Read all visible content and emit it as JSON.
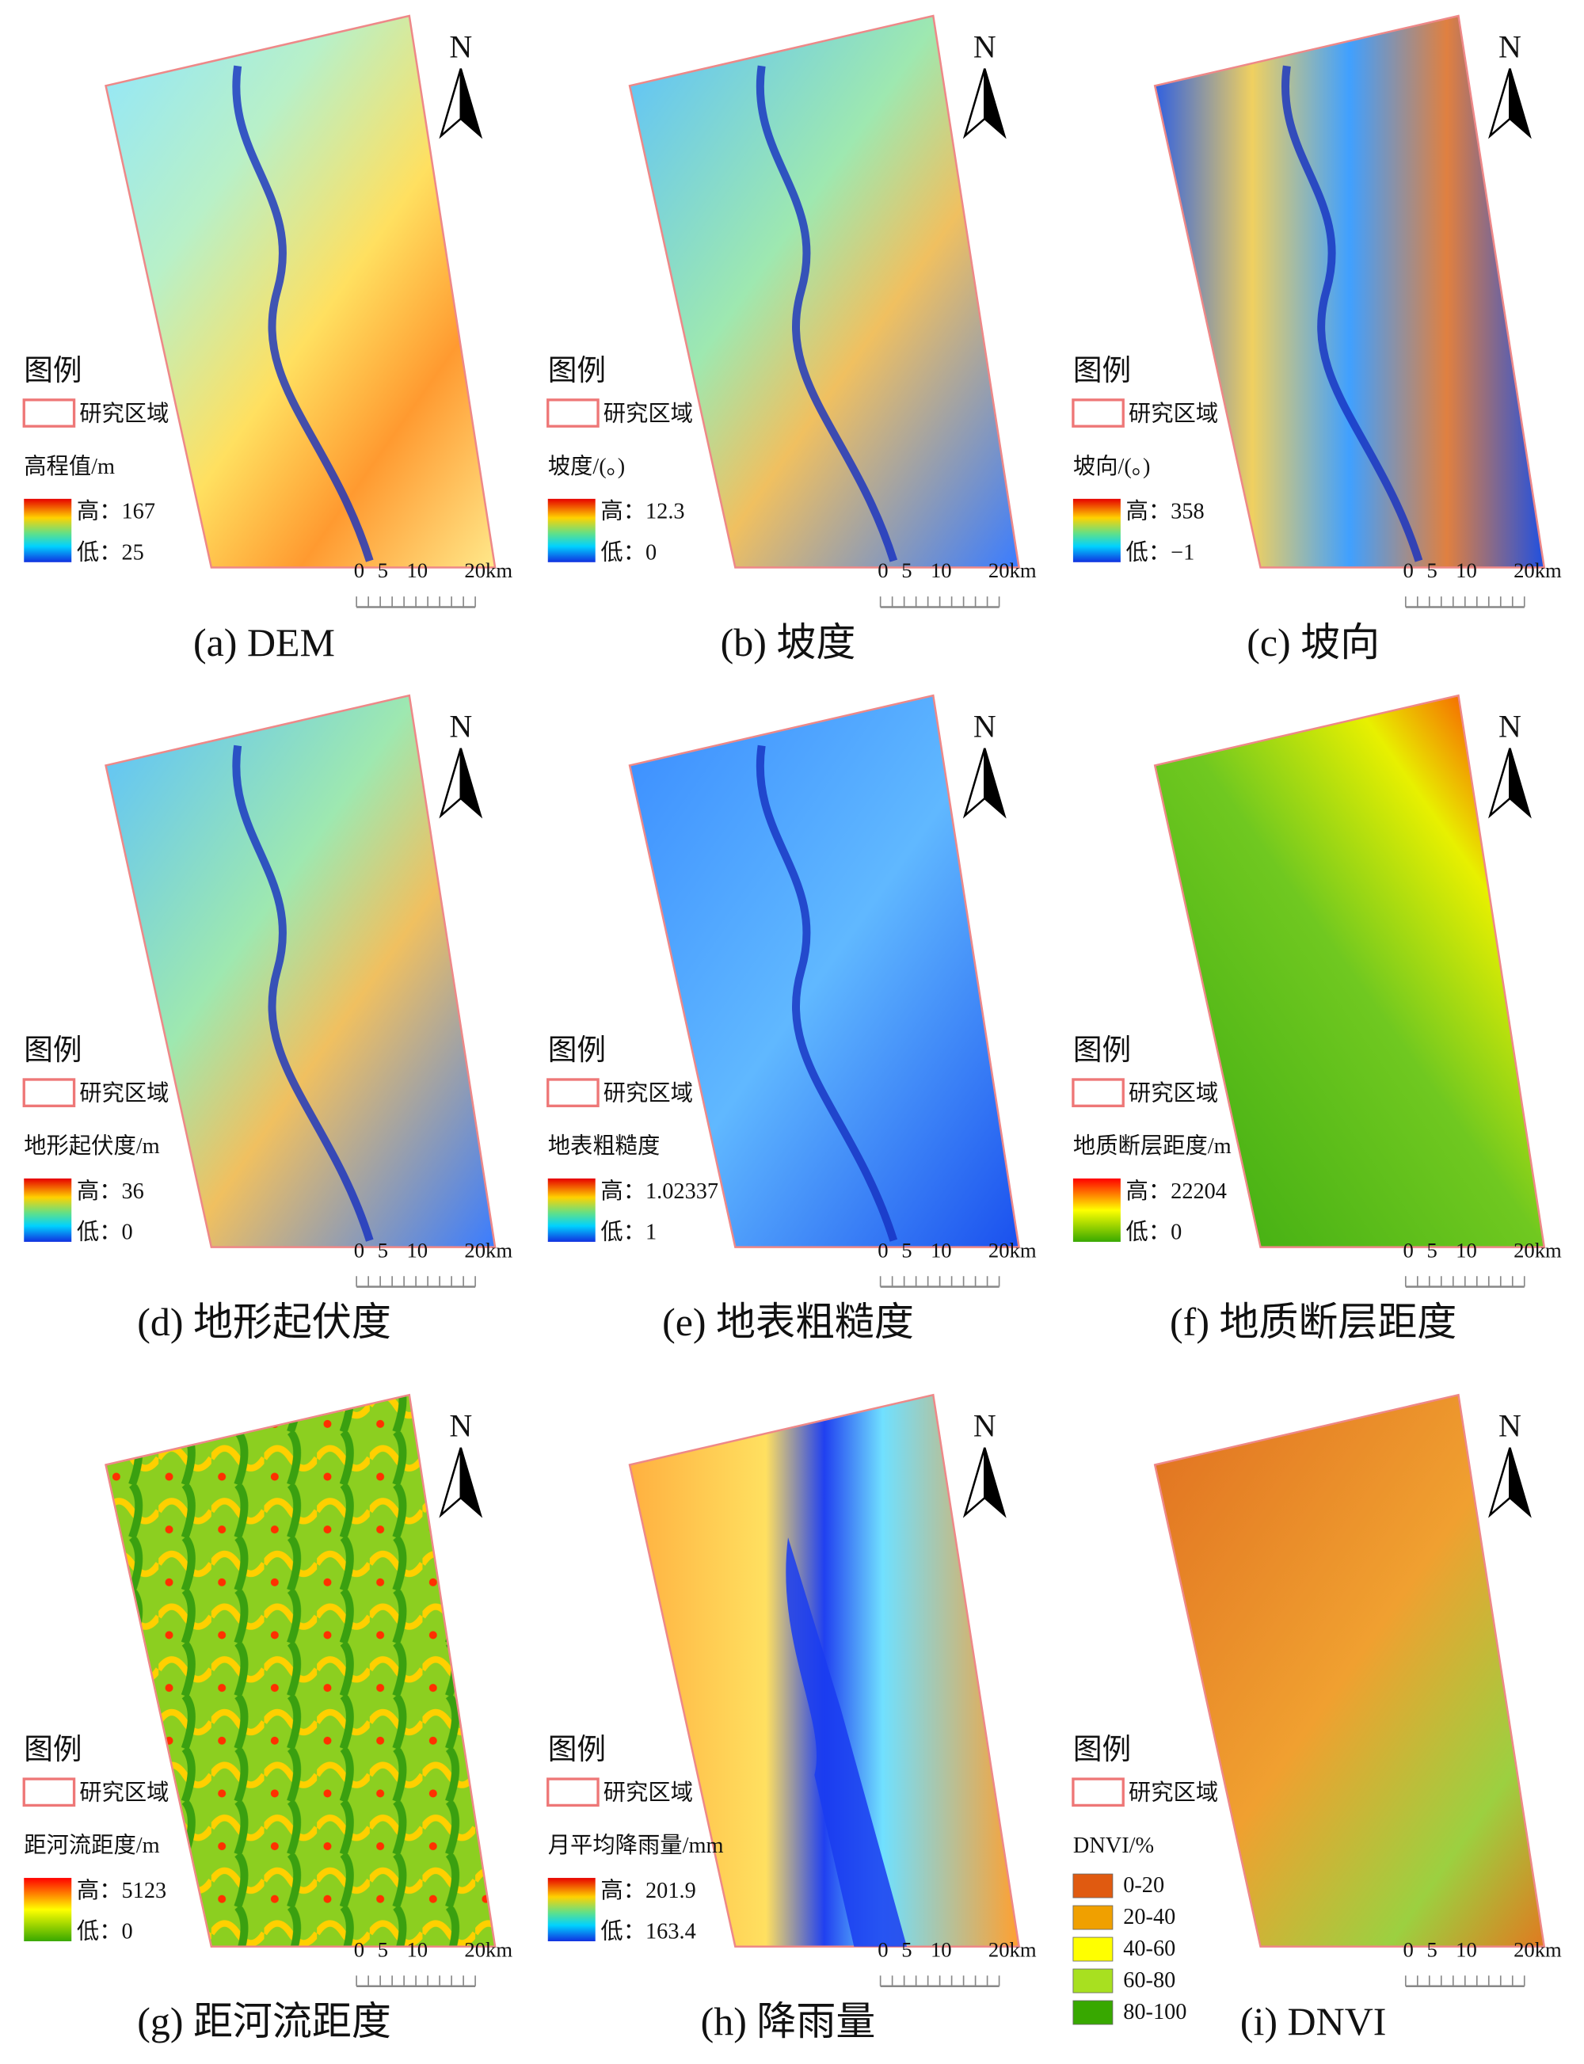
{
  "panels": [
    {
      "caption": "(a)  DEM",
      "legend_title": "图例",
      "boundary": "研究区域",
      "variable": "高程值/m",
      "high": "高：167",
      "low": "低：25"
    },
    {
      "caption": "(b)  坡度",
      "legend_title": "图例",
      "boundary": "研究区域",
      "variable": "坡度/(。)",
      "high": "高：12.3",
      "low": "低：0"
    },
    {
      "caption": "(c)  坡向",
      "legend_title": "图例",
      "boundary": "研究区域",
      "variable": "坡向/(。)",
      "high": "高：358",
      "low": "低：−1"
    },
    {
      "caption": "(d)  地形起伏度",
      "legend_title": "图例",
      "boundary": "研究区域",
      "variable": "地形起伏度/m",
      "high": "高：36",
      "low": "低：0"
    },
    {
      "caption": "(e)  地表粗糙度",
      "legend_title": "图例",
      "boundary": "研究区域",
      "variable": "地表粗糙度",
      "high": "高：1.02337",
      "low": "低：1"
    },
    {
      "caption": "(f)  地质断层距度",
      "legend_title": "图例",
      "boundary": "研究区域",
      "variable": "地质断层距度/m",
      "high": "高：22204",
      "low": "低：0"
    },
    {
      "caption": "(g)  距河流距度",
      "legend_title": "图例",
      "boundary": "研究区域",
      "variable": "距河流距度/m",
      "high": "高：5123",
      "low": "低：0"
    },
    {
      "caption": "(h)  降雨量",
      "legend_title": "图例",
      "boundary": "研究区域",
      "variable": "月平均降雨量/mm",
      "high": "高：201.9",
      "low": "低：163.4"
    },
    {
      "caption": "(i)  DNVI",
      "legend_title": "图例",
      "boundary": "研究区域",
      "variable": "DNVI/%",
      "classes": [
        "0-20",
        "20-40",
        "40-60",
        "60-80",
        "80-100"
      ]
    }
  ],
  "north": "N",
  "scale_labels": [
    "0",
    "5",
    "10",
    "20km"
  ]
}
